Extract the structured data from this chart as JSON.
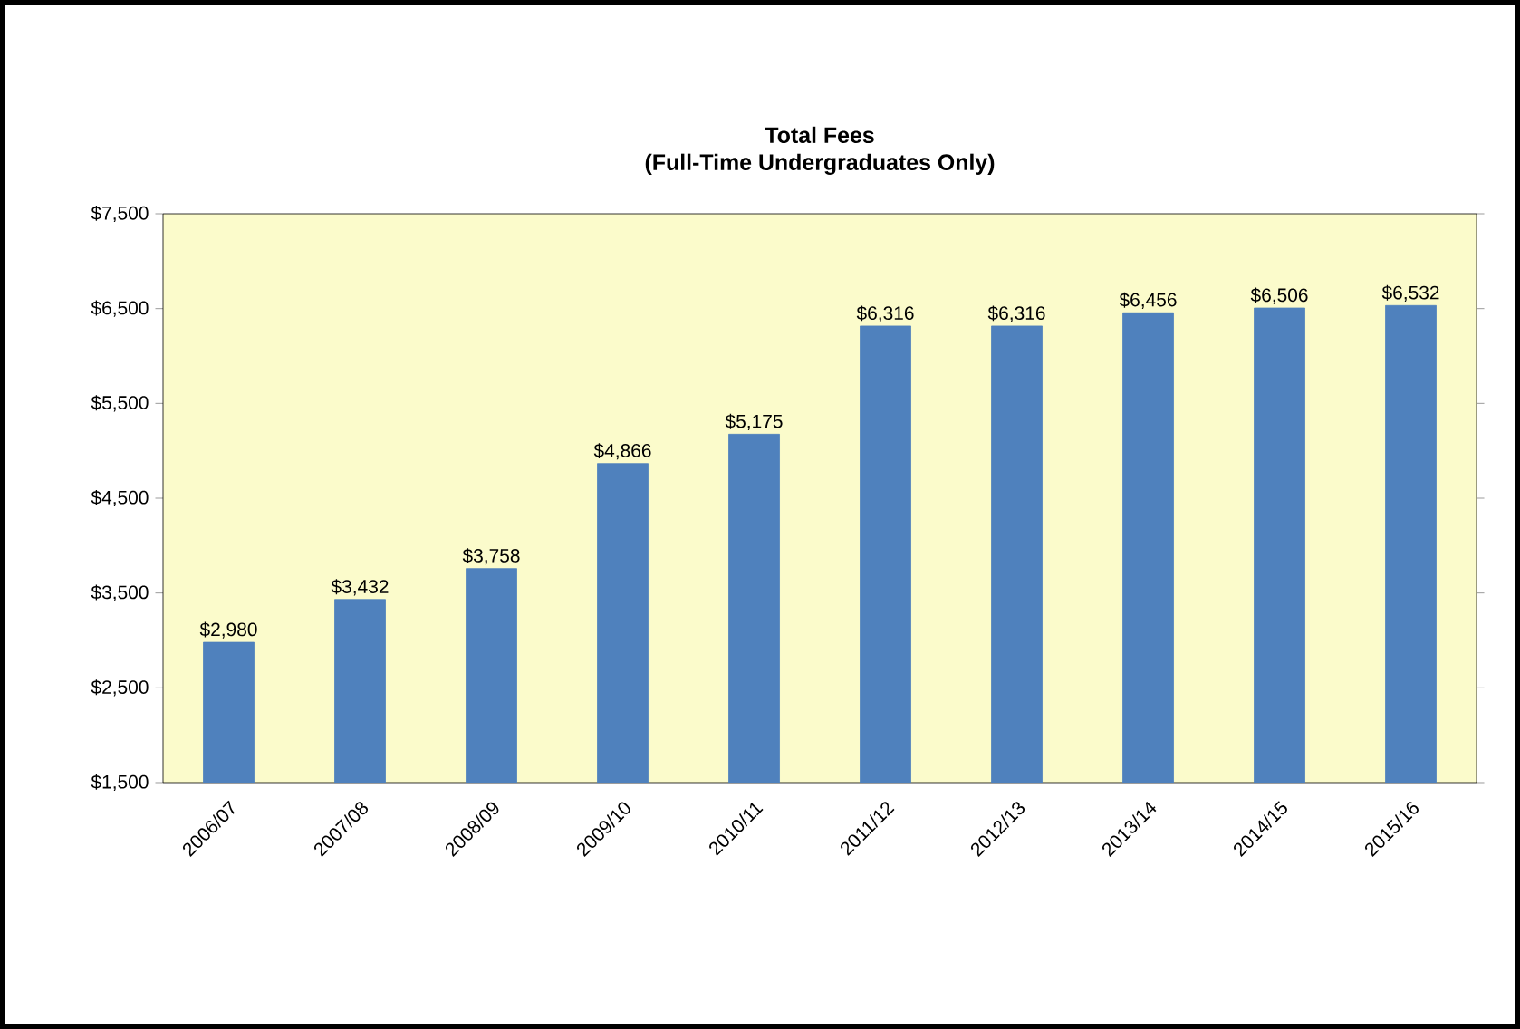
{
  "chart_data": {
    "type": "bar",
    "title": "Total Fees",
    "subtitle": "(Full-Time Undergraduates Only)",
    "categories": [
      "2006/07",
      "2007/08",
      "2008/09",
      "2009/10",
      "2010/11",
      "2011/12",
      "2012/13",
      "2013/14",
      "2014/15",
      "2015/16"
    ],
    "values": [
      2980,
      3432,
      3758,
      4866,
      5175,
      6316,
      6316,
      6456,
      6506,
      6532
    ],
    "value_labels": [
      "$2,980",
      "$3,432",
      "$3,758",
      "$4,866",
      "$5,175",
      "$6,316",
      "$6,316",
      "$6,456",
      "$6,506",
      "$6,532"
    ],
    "color": "#4f81bd",
    "ylim": [
      1500,
      7500
    ],
    "yticks": [
      {
        "value": 1500,
        "label": "$1,500"
      },
      {
        "value": 2500,
        "label": "$2,500"
      },
      {
        "value": 3500,
        "label": "$3,500"
      },
      {
        "value": 4500,
        "label": "$4,500"
      },
      {
        "value": 5500,
        "label": "$5,500"
      },
      {
        "value": 6500,
        "label": "$6,500"
      },
      {
        "value": 7500,
        "label": "$7,500"
      }
    ],
    "grid": false
  }
}
